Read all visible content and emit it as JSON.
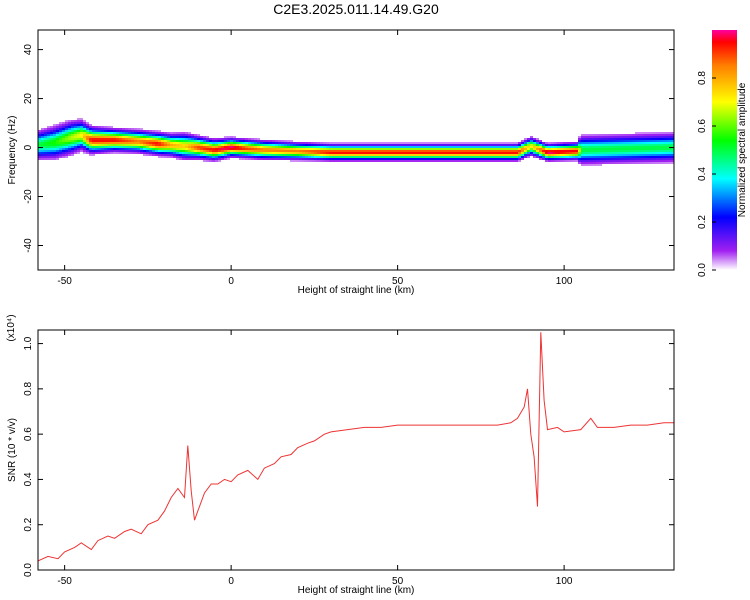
{
  "title": "C2E3.2025.011.14.49.G20",
  "chart_data": [
    {
      "type": "heatmap",
      "xlabel": "Height of straight line (km)",
      "ylabel": "Frequency (Hz)",
      "xlim": [
        -58,
        133
      ],
      "ylim": [
        -50,
        48
      ],
      "xticks": [
        -50,
        0,
        50,
        100
      ],
      "yticks": [
        -40,
        -20,
        0,
        20,
        40
      ],
      "ridge": [
        {
          "x": -58,
          "f": 1.0,
          "amp": 0.5,
          "w": 4.0
        },
        {
          "x": -53,
          "f": 2.0,
          "amp": 0.55,
          "w": 4.5
        },
        {
          "x": -48,
          "f": 4.0,
          "amp": 0.65,
          "w": 4.5
        },
        {
          "x": -45,
          "f": 5.0,
          "amp": 0.7,
          "w": 4.0
        },
        {
          "x": -42,
          "f": 3.0,
          "amp": 0.95,
          "w": 3.5
        },
        {
          "x": -35,
          "f": 3.0,
          "amp": 0.95,
          "w": 3.0
        },
        {
          "x": -28,
          "f": 2.5,
          "amp": 0.85,
          "w": 3.0
        },
        {
          "x": -22,
          "f": 1.5,
          "amp": 0.95,
          "w": 3.0
        },
        {
          "x": -18,
          "f": 1.0,
          "amp": 0.8,
          "w": 3.0
        },
        {
          "x": -14,
          "f": 0.5,
          "amp": 0.75,
          "w": 3.5
        },
        {
          "x": -10,
          "f": 0.0,
          "amp": 0.9,
          "w": 3.0
        },
        {
          "x": -5,
          "f": -1.0,
          "amp": 0.95,
          "w": 2.8
        },
        {
          "x": 0,
          "f": 0.0,
          "amp": 1.0,
          "w": 2.5
        },
        {
          "x": 5,
          "f": -0.5,
          "amp": 0.9,
          "w": 2.5
        },
        {
          "x": 10,
          "f": -1.0,
          "amp": 0.85,
          "w": 2.5
        },
        {
          "x": 20,
          "f": -1.5,
          "amp": 0.85,
          "w": 2.3
        },
        {
          "x": 30,
          "f": -2.0,
          "amp": 0.95,
          "w": 2.2
        },
        {
          "x": 50,
          "f": -2.0,
          "amp": 0.95,
          "w": 2.2
        },
        {
          "x": 70,
          "f": -2.0,
          "amp": 0.95,
          "w": 2.2
        },
        {
          "x": 86,
          "f": -2.0,
          "amp": 0.95,
          "w": 2.2
        },
        {
          "x": 90,
          "f": 0.5,
          "amp": 0.7,
          "w": 2.5
        },
        {
          "x": 95,
          "f": -2.0,
          "amp": 1.0,
          "w": 2.2
        },
        {
          "x": 104,
          "f": -1.5,
          "amp": 0.95,
          "w": 2.3
        },
        {
          "x": 105,
          "f": -1.0,
          "amp": 0.5,
          "w": 4.0
        },
        {
          "x": 133,
          "f": 0.0,
          "amp": 0.5,
          "w": 4.0
        }
      ],
      "colorbar": {
        "label": "Normalized spectral amplitude",
        "range": [
          0,
          1
        ],
        "ticks": [
          "0.0",
          "0.2",
          "0.4",
          "0.6",
          "0.8"
        ]
      }
    },
    {
      "type": "line",
      "xlabel": "Height of straight line (km)",
      "ylabel": "SNR (10 * v/v)",
      "exponent_label": "(x10⁴)",
      "xlim": [
        -58,
        133
      ],
      "ylim": [
        0,
        1.06
      ],
      "xticks": [
        -50,
        0,
        50,
        100
      ],
      "yticks": [
        "0.0",
        "0.2",
        "0.4",
        "0.6",
        "0.8",
        "1.0"
      ],
      "color": "#ee3333",
      "series": [
        {
          "x": [
            -58,
            -55,
            -52,
            -50,
            -47,
            -45,
            -42,
            -40,
            -37,
            -35,
            -32,
            -30,
            -27,
            -25,
            -22,
            -20,
            -18,
            -16,
            -14,
            -13,
            -12,
            -11,
            -10,
            -8,
            -6,
            -4,
            -2,
            0,
            2,
            5,
            8,
            10,
            13,
            15,
            18,
            20,
            23,
            25,
            28,
            30,
            35,
            40,
            45,
            50,
            55,
            60,
            65,
            70,
            75,
            80,
            84,
            86,
            88,
            89,
            90,
            91,
            92,
            93,
            94,
            95,
            98,
            100,
            105,
            108,
            110,
            115,
            120,
            125,
            130,
            133
          ],
          "y": [
            0.04,
            0.06,
            0.05,
            0.08,
            0.1,
            0.12,
            0.09,
            0.13,
            0.15,
            0.14,
            0.17,
            0.18,
            0.16,
            0.2,
            0.22,
            0.26,
            0.32,
            0.36,
            0.32,
            0.55,
            0.35,
            0.22,
            0.26,
            0.34,
            0.38,
            0.38,
            0.4,
            0.39,
            0.42,
            0.44,
            0.4,
            0.45,
            0.47,
            0.5,
            0.51,
            0.54,
            0.56,
            0.57,
            0.6,
            0.61,
            0.62,
            0.63,
            0.63,
            0.64,
            0.64,
            0.64,
            0.64,
            0.64,
            0.64,
            0.64,
            0.65,
            0.67,
            0.72,
            0.8,
            0.6,
            0.5,
            0.28,
            1.05,
            0.75,
            0.62,
            0.63,
            0.61,
            0.62,
            0.67,
            0.63,
            0.63,
            0.64,
            0.64,
            0.65,
            0.65
          ]
        }
      ]
    }
  ]
}
